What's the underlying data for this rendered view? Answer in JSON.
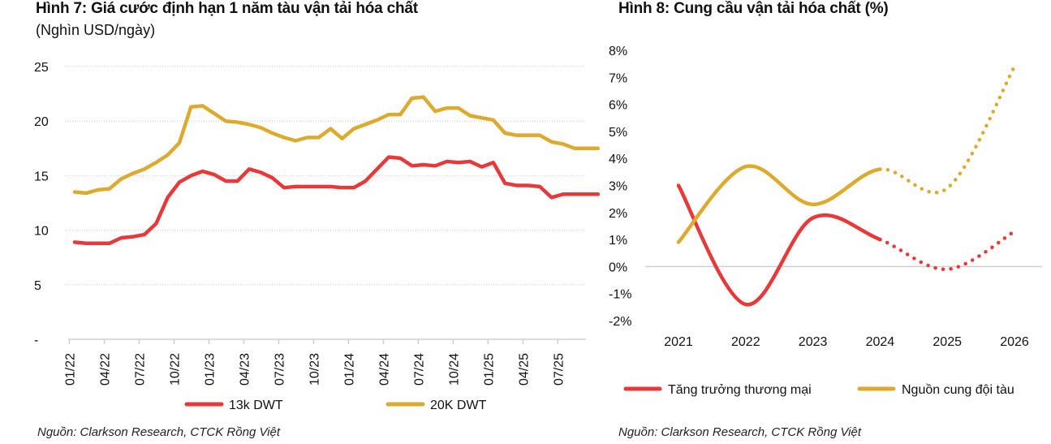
{
  "figure7": {
    "title": "Hình 7:  Giá cước định hạn 1 năm tàu vận tải hóa chất",
    "subtitle": "(Nghìn USD/ngày)",
    "source": "Nguồn: Clarkson Research, CTCK Rồng Việt"
  },
  "figure8": {
    "title": "Hình 8: Cung cầu vận tải hóa chất (%)",
    "source": "Nguồn: Clarkson Research, CTCK Rồng Việt"
  },
  "colors": {
    "red": "#e8393a",
    "gold": "#dcaa2e",
    "grid": "#c8c8c8",
    "axis": "#cfcfcf"
  },
  "chart_data": [
    {
      "type": "line",
      "title": "Hình 7:  Giá cước định hạn 1 năm tàu vận tải hóa chất",
      "ylabel": "(Nghìn USD/ngày)",
      "xlabel": "",
      "ylim": [
        0,
        25
      ],
      "yticks": [
        0,
        5,
        10,
        15,
        20,
        25
      ],
      "ytick_labels": [
        "-",
        "5",
        "10",
        "15",
        "20",
        "25"
      ],
      "grid": "horizontal dotted",
      "legend": "bottom",
      "x": [
        "01/22",
        "02/22",
        "03/22",
        "04/22",
        "05/22",
        "06/22",
        "07/22",
        "08/22",
        "09/22",
        "10/22",
        "11/22",
        "12/22",
        "01/23",
        "02/23",
        "03/23",
        "04/23",
        "05/23",
        "06/23",
        "07/23",
        "08/23",
        "09/23",
        "10/23",
        "11/23",
        "12/23",
        "01/24",
        "02/24",
        "03/24",
        "04/24",
        "05/24",
        "06/24",
        "07/24",
        "08/24",
        "09/24",
        "10/24",
        "11/24",
        "12/24",
        "01/25",
        "02/25",
        "03/25",
        "04/25",
        "05/25",
        "06/25",
        "07/25",
        "08/25",
        "09/25",
        "10/25"
      ],
      "xtick_labels": [
        "01/22",
        "04/22",
        "07/22",
        "10/22",
        "01/23",
        "04/23",
        "07/23",
        "10/23",
        "01/24",
        "04/24",
        "07/24",
        "10/24",
        "01/25",
        "04/25",
        "07/25"
      ],
      "series": [
        {
          "name": "13k DWT",
          "color": "#e8393a",
          "values": [
            8.9,
            8.8,
            8.8,
            8.8,
            9.3,
            9.4,
            9.6,
            10.6,
            13.0,
            14.4,
            15.0,
            15.4,
            15.1,
            14.5,
            14.5,
            15.6,
            15.3,
            14.8,
            13.9,
            14.0,
            14.0,
            14.0,
            14.0,
            13.9,
            13.9,
            14.5,
            15.6,
            16.7,
            16.6,
            15.9,
            16.0,
            15.9,
            16.3,
            16.2,
            16.3,
            15.8,
            16.2,
            14.3,
            14.1,
            14.1,
            14.0,
            13.0,
            13.3,
            13.3,
            13.3,
            13.3
          ]
        },
        {
          "name": "20K DWT",
          "color": "#dcaa2e",
          "values": [
            13.5,
            13.4,
            13.7,
            13.8,
            14.7,
            15.2,
            15.6,
            16.2,
            16.9,
            18.0,
            21.3,
            21.4,
            20.7,
            20.0,
            19.9,
            19.7,
            19.4,
            18.9,
            18.5,
            18.2,
            18.5,
            18.5,
            19.3,
            18.4,
            19.3,
            19.7,
            20.1,
            20.6,
            20.6,
            22.1,
            22.2,
            20.9,
            21.2,
            21.2,
            20.5,
            20.3,
            20.1,
            18.9,
            18.7,
            18.7,
            18.7,
            18.1,
            17.9,
            17.5,
            17.5,
            17.5
          ]
        }
      ]
    },
    {
      "type": "line",
      "title": "Hình 8: Cung cầu vận tải hóa chất (%)",
      "xlabel": "",
      "ylabel": "",
      "ylim": [
        -2,
        8
      ],
      "yticks": [
        -2,
        -1,
        0,
        1,
        2,
        3,
        4,
        5,
        6,
        7,
        8
      ],
      "ytick_labels": [
        "-2%",
        "-1%",
        "0%",
        "1%",
        "2%",
        "3%",
        "4%",
        "5%",
        "6%",
        "7%",
        "8%"
      ],
      "grid": "zero line only",
      "legend": "bottom",
      "categories": [
        "2021",
        "2022",
        "2023",
        "2024",
        "2025",
        "2026"
      ],
      "forecast_from": "2024",
      "forecast_style": "dotted",
      "series": [
        {
          "name": "Tăng trưởng thương mại",
          "color": "#e8393a",
          "values": [
            3.0,
            -1.4,
            1.8,
            1.0,
            -0.1,
            1.3
          ]
        },
        {
          "name": "Nguồn cung đội tàu",
          "color": "#dcaa2e",
          "values": [
            0.9,
            3.7,
            2.3,
            3.6,
            2.9,
            7.4
          ]
        }
      ]
    }
  ]
}
